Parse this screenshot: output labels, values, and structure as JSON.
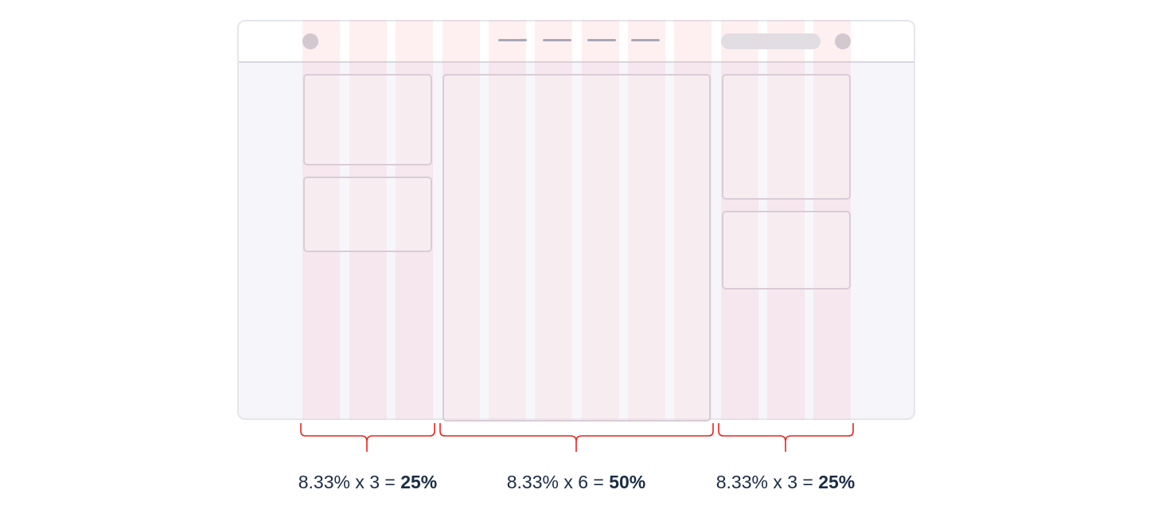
{
  "labels": [
    {
      "formula": "8.33% x 3 = ",
      "result": "25%"
    },
    {
      "formula": "8.33% x 6 = ",
      "result": "50%"
    },
    {
      "formula": "8.33% x 3 = ",
      "result": "25%"
    }
  ],
  "icons": {
    "logo": "circle-logo-icon",
    "avatar": "circle-avatar-icon"
  },
  "colors": {
    "grid_column": "#faacb2",
    "brace": "#e8231e",
    "text": "#1b2c45",
    "browser_bg": "#f5f5fa",
    "card_border": "#d9ccd6"
  }
}
